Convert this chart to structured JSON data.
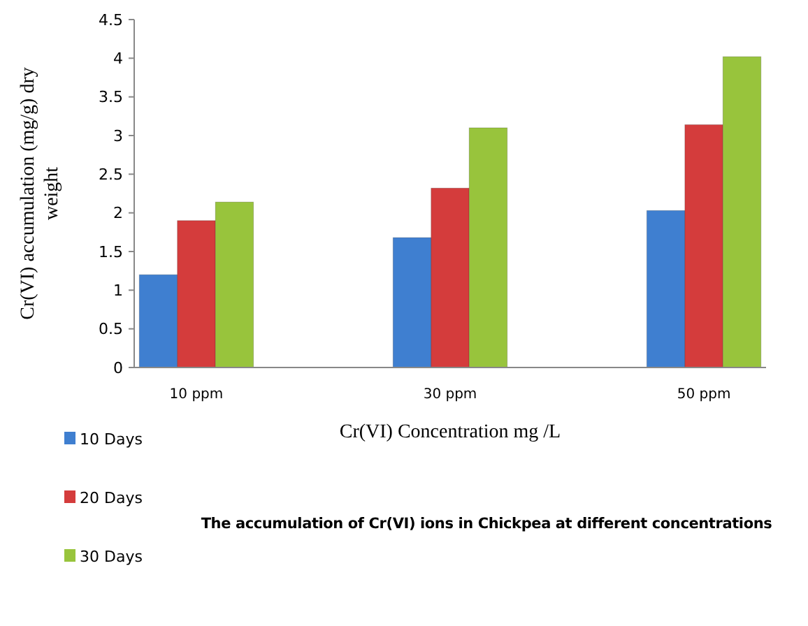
{
  "chart_data": {
    "type": "bar",
    "title": "The accumulation of Cr(VI) ions in Chickpea at different concentrations",
    "xlabel": "Cr(VI) Concentration mg /L",
    "ylabel": "Cr(VI) accumulation (mg/g) dry weight",
    "categories": [
      "10 ppm",
      "30 ppm",
      "50 ppm"
    ],
    "series": [
      {
        "name": "10 Days",
        "color": "#3f7fd0",
        "values": [
          1.2,
          1.68,
          2.03
        ]
      },
      {
        "name": "20 Days",
        "color": "#d43c3c",
        "values": [
          1.9,
          2.32,
          3.14
        ]
      },
      {
        "name": "30 Days",
        "color": "#98c43c",
        "values": [
          2.14,
          3.1,
          4.02
        ]
      }
    ],
    "ylim": [
      0,
      4.5
    ],
    "yticks": [
      0,
      0.5,
      1,
      1.5,
      2,
      2.5,
      3,
      3.5,
      4,
      4.5
    ],
    "grid": false,
    "legend": "bottom left"
  }
}
